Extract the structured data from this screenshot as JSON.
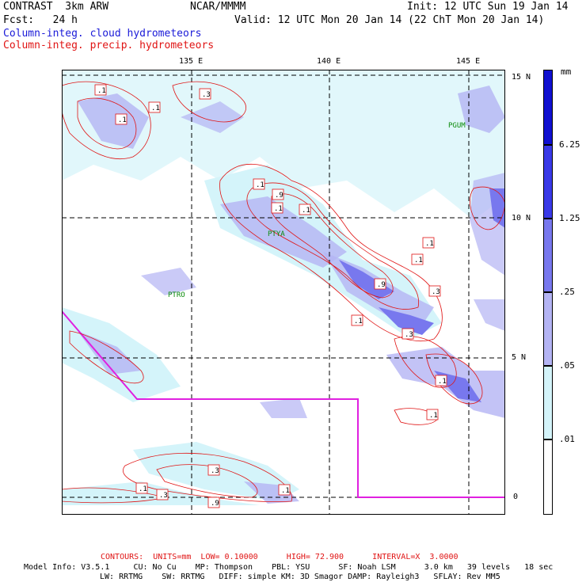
{
  "header": {
    "model": "CONTRAST",
    "resolution": "3km ARW",
    "agency": "NCAR/MMMM",
    "init": "Init: 12 UTC Sun 19 Jan 14",
    "fcst_label": "Fcst:",
    "fcst_value": "24 h",
    "valid": "Valid: 12 UTC Mon 20 Jan 14 (22 ChT Mon 20 Jan 14)",
    "field1": "Column-integ. cloud hydrometeors",
    "field2": "Column-integ. precip. hydrometeors"
  },
  "axes": {
    "lon_labels": [
      "135 E",
      "140 E",
      "145 E"
    ],
    "lat_labels": [
      "15 N",
      "10 N",
      "5 N",
      "0"
    ]
  },
  "stations": [
    "PGUM",
    "PTYA",
    "PTRO"
  ],
  "contour_labels": [
    ".1",
    ".1",
    ".1",
    ".3",
    ".1",
    ".9",
    ".1",
    ".1",
    ".1",
    ".9",
    ".3",
    ".1",
    ".3",
    ".1",
    ".1",
    ".1",
    ".3",
    ".1",
    ".3",
    ".9",
    ".1"
  ],
  "colorbar": {
    "unit": "mm",
    "levels": [
      "6.25",
      "1.25",
      ".25",
      ".05",
      ".01"
    ],
    "colors": [
      "#1010d0",
      "#3a3ae8",
      "#7878ee",
      "#b4b4f4",
      "#d4f4fa",
      "#ffffff"
    ]
  },
  "footer": {
    "contours": "CONTOURS:  UNITS=mm  LOW= 0.10000      HIGH= 72.900      INTERVAL=X  3.0000",
    "line1": "Model Info: V3.5.1     CU: No Cu    MP: Thompson    PBL: YSU      SF: Noah LSM      3.0 km   39 levels   18 sec",
    "line2": "LW: RRTMG    SW: RRTMG   DIFF: simple KM: 3D Smagor DAMP: Rayleigh3   SFLAY: Rev MM5"
  }
}
